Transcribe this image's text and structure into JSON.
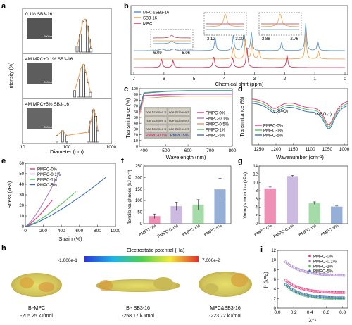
{
  "panel_letters": {
    "a": "a",
    "b": "b",
    "c": "c",
    "d": "d",
    "e": "e",
    "f": "f",
    "g": "g",
    "h": "h",
    "i": "i"
  },
  "colors": {
    "p0": "#e2397e",
    "p01": "#a583c9",
    "p1": "#5bbf62",
    "p5": "#3f6fb5",
    "mpcsb": "#4e8fce",
    "sb": "#f29a3a",
    "mpc": "#c62a4a",
    "dist": "#3b3b3b",
    "lorentz": "#e89a52"
  },
  "chart_data": [
    {
      "id": "a",
      "type": "bar",
      "xlabel": "Diameter (nm)",
      "ylabel": "Intensity (%)",
      "x_ticks": [
        "10",
        "100",
        "1000"
      ],
      "x_scale": "log",
      "xlim": [
        10,
        1000
      ],
      "subpanels": [
        {
          "label": "0.1% SB3-16",
          "scalebar": "200nm",
          "bins": [
            170,
            200,
            230,
            260,
            290,
            320,
            350
          ],
          "values": [
            0.18,
            0.55,
            0.95,
            1.0,
            0.8,
            0.4,
            0.12
          ]
        },
        {
          "label": "4M MPC+0.1% SB3-16",
          "scalebar": "200nm",
          "bins": [
            150,
            180,
            210,
            240,
            270,
            300,
            340
          ],
          "values": [
            0.2,
            0.55,
            0.9,
            1.0,
            0.75,
            0.45,
            0.15
          ]
        },
        {
          "label": "4M MPC+5% SB3-16",
          "scalebar": "200nm",
          "bins": [
            60,
            80,
            100,
            300,
            350,
            400,
            450,
            500
          ],
          "values": [
            0.2,
            0.35,
            0.2,
            0.3,
            0.65,
            1.0,
            0.8,
            0.35
          ]
        }
      ]
    },
    {
      "id": "b",
      "type": "line",
      "xlabel": "Chemical shift (ppm)",
      "x_ticks": [
        "7",
        "6",
        "5",
        "4",
        "3",
        "2",
        "1",
        "0"
      ],
      "xlim": [
        7,
        0
      ],
      "series": [
        {
          "name": "MPC&SB3-16"
        },
        {
          "name": "SB3-16"
        },
        {
          "name": "MPC"
        }
      ],
      "insets": [
        {
          "ticks": [
            "6.09",
            "6.06"
          ]
        },
        {
          "ticks": [
            "3.12",
            "3.00"
          ]
        },
        {
          "ticks": [
            "2.88",
            "2.76"
          ]
        }
      ]
    },
    {
      "id": "c",
      "type": "line",
      "xlabel": "Wavelength (nm)",
      "ylabel": "Transmittance (%)",
      "x_ticks": [
        "400",
        "500",
        "600",
        "700",
        "800"
      ],
      "xlim": [
        380,
        800
      ],
      "y_ticks": [
        "0",
        "10",
        "20",
        "30",
        "40",
        "50",
        "60",
        "70",
        "80",
        "90",
        "100"
      ],
      "ylim": [
        0,
        100
      ],
      "series": [
        {
          "name": "PMPC-0%",
          "values": [
            88,
            90,
            91,
            91,
            91
          ]
        },
        {
          "name": "PMPC-0.1%",
          "values": [
            87,
            89,
            90,
            90,
            90
          ]
        },
        {
          "name": "PMPC-0.5%",
          "values": [
            83,
            86,
            87,
            87,
            87
          ]
        },
        {
          "name": "PMPC-1%",
          "values": [
            93,
            96,
            97,
            97,
            97
          ]
        },
        {
          "name": "PMPC-5%",
          "values": [
            92,
            95,
            96,
            96,
            96
          ]
        }
      ],
      "photo_labels": [
        "PMPC-0.1%",
        "PMPC-5%"
      ],
      "photo_text": [
        "nce Science S",
        "nce Science S",
        "nce Science S",
        "nce Science S",
        "nce Science S",
        "nce Science S"
      ]
    },
    {
      "id": "d",
      "type": "line",
      "xlabel": "Wavenumber (cm⁻¹)",
      "ylabel": "Transmittance (%)",
      "x_ticks": [
        "1250",
        "1200",
        "1150",
        "1100",
        "1050",
        "1000"
      ],
      "xlim": [
        1270,
        990
      ],
      "annotations": [
        "ν (S=O)",
        "ν (SO₃⁻)"
      ],
      "series": [
        {
          "name": "PMPC-0%"
        },
        {
          "name": "PMPC-1%"
        },
        {
          "name": "PMPC-5%"
        }
      ]
    },
    {
      "id": "e",
      "type": "line",
      "xlabel": "Strain (%)",
      "ylabel": "Stress (kPa)",
      "x_ticks": [
        "0",
        "200",
        "400",
        "600",
        "800",
        "1000"
      ],
      "xlim": [
        0,
        1000
      ],
      "y_ticks": [
        "0",
        "10",
        "20",
        "30",
        "40",
        "50",
        "60"
      ],
      "ylim": [
        0,
        60
      ],
      "series": [
        {
          "name": "PMPC-0%",
          "x": [
            0,
            300
          ],
          "y": [
            0,
            25
          ]
        },
        {
          "name": "PMPC-0.1%",
          "x": [
            0,
            380
          ],
          "y": [
            0,
            52
          ]
        },
        {
          "name": "PMPC-1%",
          "x": [
            0,
            560
          ],
          "y": [
            0,
            33
          ]
        },
        {
          "name": "PMPC-5%",
          "x": [
            0,
            900
          ],
          "y": [
            0,
            47
          ]
        }
      ]
    },
    {
      "id": "f",
      "type": "bar",
      "ylabel": "Tensile toughness (kJ m⁻³)",
      "categories": [
        "PMPC-0%",
        "PMPC-0.1%",
        "PMPC-1%",
        "PMPC-5%"
      ],
      "values": [
        32,
        75,
        82,
        148
      ],
      "errors": [
        10,
        18,
        22,
        48
      ],
      "y_ticks": [
        "0",
        "50",
        "100",
        "150",
        "200",
        "250"
      ],
      "ylim": [
        0,
        250
      ]
    },
    {
      "id": "g",
      "type": "bar",
      "ylabel": "Young's modulus (kPa)",
      "categories": [
        "PMPC-0%",
        "PMPC-0.1%",
        "PMPC-1%",
        "PMPC-5%"
      ],
      "values": [
        8.5,
        11.5,
        5.0,
        4.1
      ],
      "errors": [
        0.4,
        0.2,
        0.3,
        0.2
      ],
      "y_ticks": [
        "0",
        "2",
        "4",
        "6",
        "8",
        "10",
        "12",
        "14"
      ],
      "ylim": [
        0,
        14
      ]
    },
    {
      "id": "i",
      "type": "scatter",
      "xlabel": "λ⁻¹",
      "ylabel": "f* (kPa)",
      "x_ticks": [
        "0.0",
        "0.2",
        "0.4",
        "0.6",
        "0.8"
      ],
      "xlim": [
        0,
        0.85
      ],
      "y_ticks": [
        "0",
        "2",
        "4",
        "6",
        "8",
        "10",
        "12"
      ],
      "ylim": [
        0,
        12.5
      ],
      "series": [
        {
          "name": "PMPC-0%",
          "a": 3.3,
          "b": 0.9,
          "c": 5.5
        },
        {
          "name": "PMPC-0.1%",
          "a": 7.0,
          "b": 1.0,
          "c": 5.0
        },
        {
          "name": "PMPC-1%",
          "a": 2.0,
          "b": 1.0,
          "c": 6.0
        },
        {
          "name": "PMPC-5%",
          "a": 2.2,
          "b": 1.0,
          "c": 6.0
        }
      ]
    }
  ],
  "panel_h": {
    "scale_title": "Electrostatic potential (Ha)",
    "scale_min": "-1.000e-1",
    "scale_max": "7.000e-2",
    "molecules": [
      {
        "name": "Bi-MPC",
        "energy": "-205.25 kJ/mol"
      },
      {
        "name": "Bi- SB3-16",
        "energy": "-258.17 kJ/mol"
      },
      {
        "name": "MPC&SB3-16",
        "energy": "-223.72 kJ/mol"
      }
    ]
  }
}
